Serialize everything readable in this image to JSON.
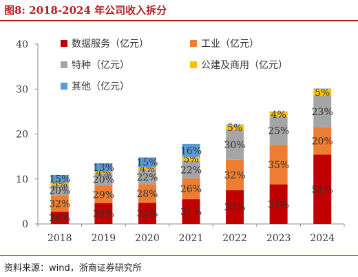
{
  "header": {
    "title": "图8:   2018-2024 年公司收入拆分"
  },
  "footer": {
    "source": "资料来源：wind，浙商证券研究所"
  },
  "colors": {
    "title": "#b21e1e",
    "series": [
      "#c00000",
      "#ed7d31",
      "#a5a5a5",
      "#ffc000",
      "#5b9bd5"
    ]
  },
  "chart_data": {
    "type": "bar",
    "stacked": true,
    "categories": [
      "2018",
      "2019",
      "2020",
      "2021",
      "2022",
      "2023",
      "2024"
    ],
    "ylim": [
      0,
      40
    ],
    "yticks": [
      0,
      10,
      20,
      30,
      40
    ],
    "grid": false,
    "legend_position": "top-left",
    "series": [
      {
        "name": "数据服务（亿元）",
        "values": [
          2.7,
          4.6,
          4.7,
          5.5,
          7.5,
          8.8,
          15.4
        ],
        "labels": [
          "24%",
          "34%",
          "32%",
          "31%",
          "33%",
          "35%",
          "51%"
        ]
      },
      {
        "name": "工业（亿元）",
        "values": [
          3.6,
          3.9,
          4.1,
          4.6,
          6.8,
          8.8,
          6.1
        ],
        "labels": [
          "32%",
          "29%",
          "28%",
          "26%",
          "32%",
          "35%",
          "20%"
        ]
      },
      {
        "name": "特种（亿元）",
        "values": [
          2.3,
          2.7,
          3.2,
          3.9,
          6.6,
          6.3,
          7.0
        ],
        "labels": [
          "20%",
          "20%",
          "22%",
          "22%",
          "30%",
          "25%",
          "23%"
        ]
      },
      {
        "name": "公建及商用（亿元）",
        "values": [
          0.6,
          0.5,
          0.6,
          0.9,
          1.1,
          1.0,
          1.5
        ],
        "labels": [
          "5%",
          "4%",
          "4%",
          "5%",
          "5%",
          "4%",
          "5%"
        ]
      },
      {
        "name": "其他（亿元）",
        "values": [
          1.7,
          1.8,
          2.2,
          2.9,
          0.1,
          0.1,
          0.1
        ],
        "labels": [
          "15%",
          "13%",
          "15%",
          "16%",
          "",
          "",
          ""
        ]
      }
    ]
  }
}
